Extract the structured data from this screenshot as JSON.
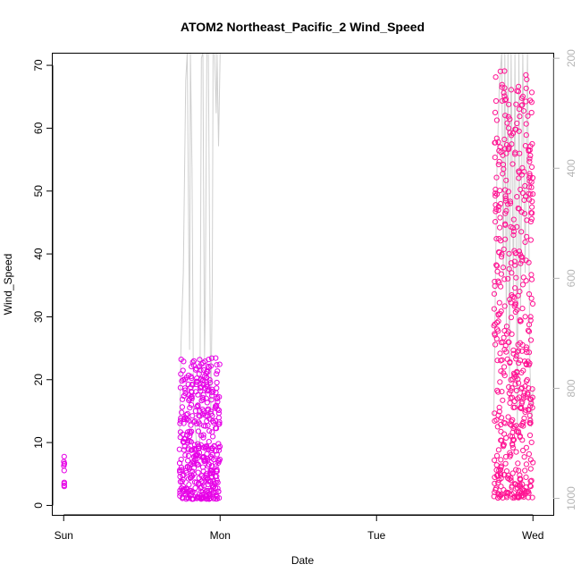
{
  "chart_data": {
    "type": "scatter",
    "title": "ATOM2 Northeast_Pacific_2 Wind_Speed",
    "xlabel": "Date",
    "ylabel": "Wind_Speed",
    "x_ticks": [
      "Sun",
      "Mon",
      "Tue",
      "Wed"
    ],
    "xlim": [
      -0.07,
      3.13
    ],
    "ylim": [
      -1.5,
      72
    ],
    "y_ticks": [
      0,
      10,
      20,
      30,
      40,
      50,
      60,
      70
    ],
    "right_axis": {
      "ticks": [
        200,
        400,
        600,
        800,
        1000
      ],
      "range_top": 190,
      "range_bottom": 1030
    },
    "colors": {
      "early": "#e600e6",
      "late": "#ff1493",
      "line": "#cfcfcf",
      "right_axis": "#b5b5b5"
    },
    "series": [
      {
        "color": "#e600e6",
        "clusters": [
          {
            "x_start": 0.0,
            "x_end": 0.005,
            "y_low": 2.5,
            "y_high": 7.8,
            "n": 10
          },
          {
            "x_start": 0.74,
            "x_end": 1.0,
            "y_low": 1.0,
            "y_high": 23.5,
            "n": 420
          }
        ]
      },
      {
        "color": "#ff1493",
        "clusters": [
          {
            "x_start": 2.75,
            "x_end": 3.0,
            "y_low": 1.2,
            "y_high": 69.5,
            "n": 520
          }
        ]
      }
    ],
    "line_series": {
      "x": [
        0.74,
        0.75,
        0.765,
        0.78,
        0.79,
        0.805,
        0.81,
        0.82,
        0.83,
        0.85,
        0.87,
        0.88,
        0.89,
        0.9,
        0.905,
        0.915,
        0.925,
        0.94,
        0.95,
        0.955,
        0.965,
        0.975,
        0.98,
        0.99,
        1.0,
        2.75,
        2.76,
        2.77,
        2.785,
        2.8,
        2.81,
        2.82,
        2.83,
        2.84,
        2.85,
        2.86,
        2.875,
        2.885,
        2.9,
        2.91,
        2.92,
        2.935,
        2.95,
        2.965,
        2.98,
        2.99,
        3.0
      ],
      "y": [
        890,
        720,
        590,
        240,
        190,
        730,
        190,
        400,
        840,
        900,
        900,
        200,
        190,
        750,
        660,
        190,
        190,
        860,
        610,
        190,
        190,
        300,
        190,
        360,
        190,
        850,
        600,
        400,
        250,
        190,
        600,
        190,
        700,
        190,
        800,
        190,
        630,
        190,
        880,
        190,
        660,
        190,
        590,
        190,
        750,
        870,
        800
      ]
    }
  }
}
